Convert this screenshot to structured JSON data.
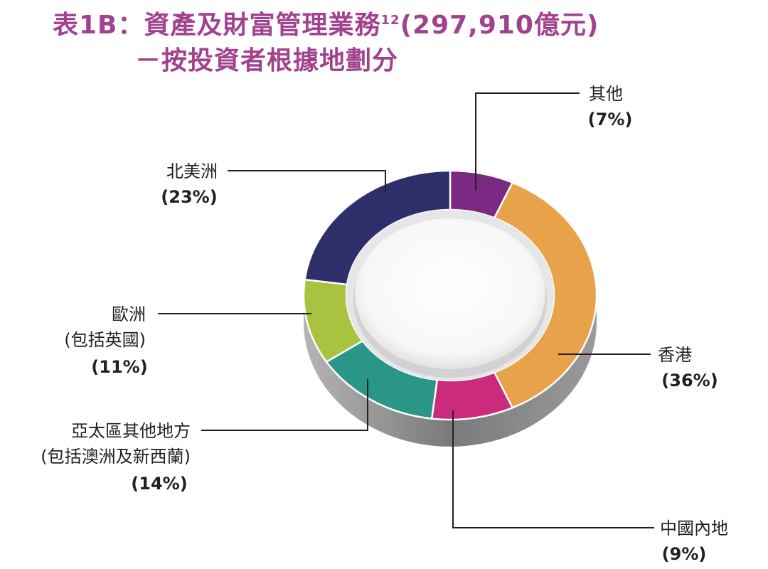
{
  "title": {
    "line1_prefix": "表1B：資產及財富管理業務",
    "line1_sup": "12",
    "line1_suffix": "(297,910億元)",
    "line2": "－按投資者根據地劃分"
  },
  "chart_data": {
    "type": "pie",
    "style": "3d-donut",
    "total": "297,910億元",
    "slices": [
      {
        "key": "other",
        "label": "其他",
        "label2": "",
        "percent_label": "(7%)",
        "value": 7,
        "color": "#7a2a82"
      },
      {
        "key": "hk",
        "label": "香港",
        "label2": "",
        "percent_label": "(36%)",
        "value": 36,
        "color": "#e8a24a"
      },
      {
        "key": "mainland",
        "label": "中國內地",
        "label2": "",
        "percent_label": "(9%)",
        "value": 9,
        "color": "#cc2a7a"
      },
      {
        "key": "apac",
        "label": "亞太區其他地方",
        "label2": "(包括澳洲及新西蘭)",
        "percent_label": "(14%)",
        "value": 14,
        "color": "#2a9688"
      },
      {
        "key": "europe",
        "label": "歐洲",
        "label2": "(包括英國)",
        "percent_label": "(11%)",
        "value": 11,
        "color": "#a9c23f"
      },
      {
        "key": "na",
        "label": "北美洲",
        "label2": "",
        "percent_label": "(23%)",
        "value": 23,
        "color": "#2d2f6b"
      }
    ],
    "side_color": "#8c8c8c"
  }
}
